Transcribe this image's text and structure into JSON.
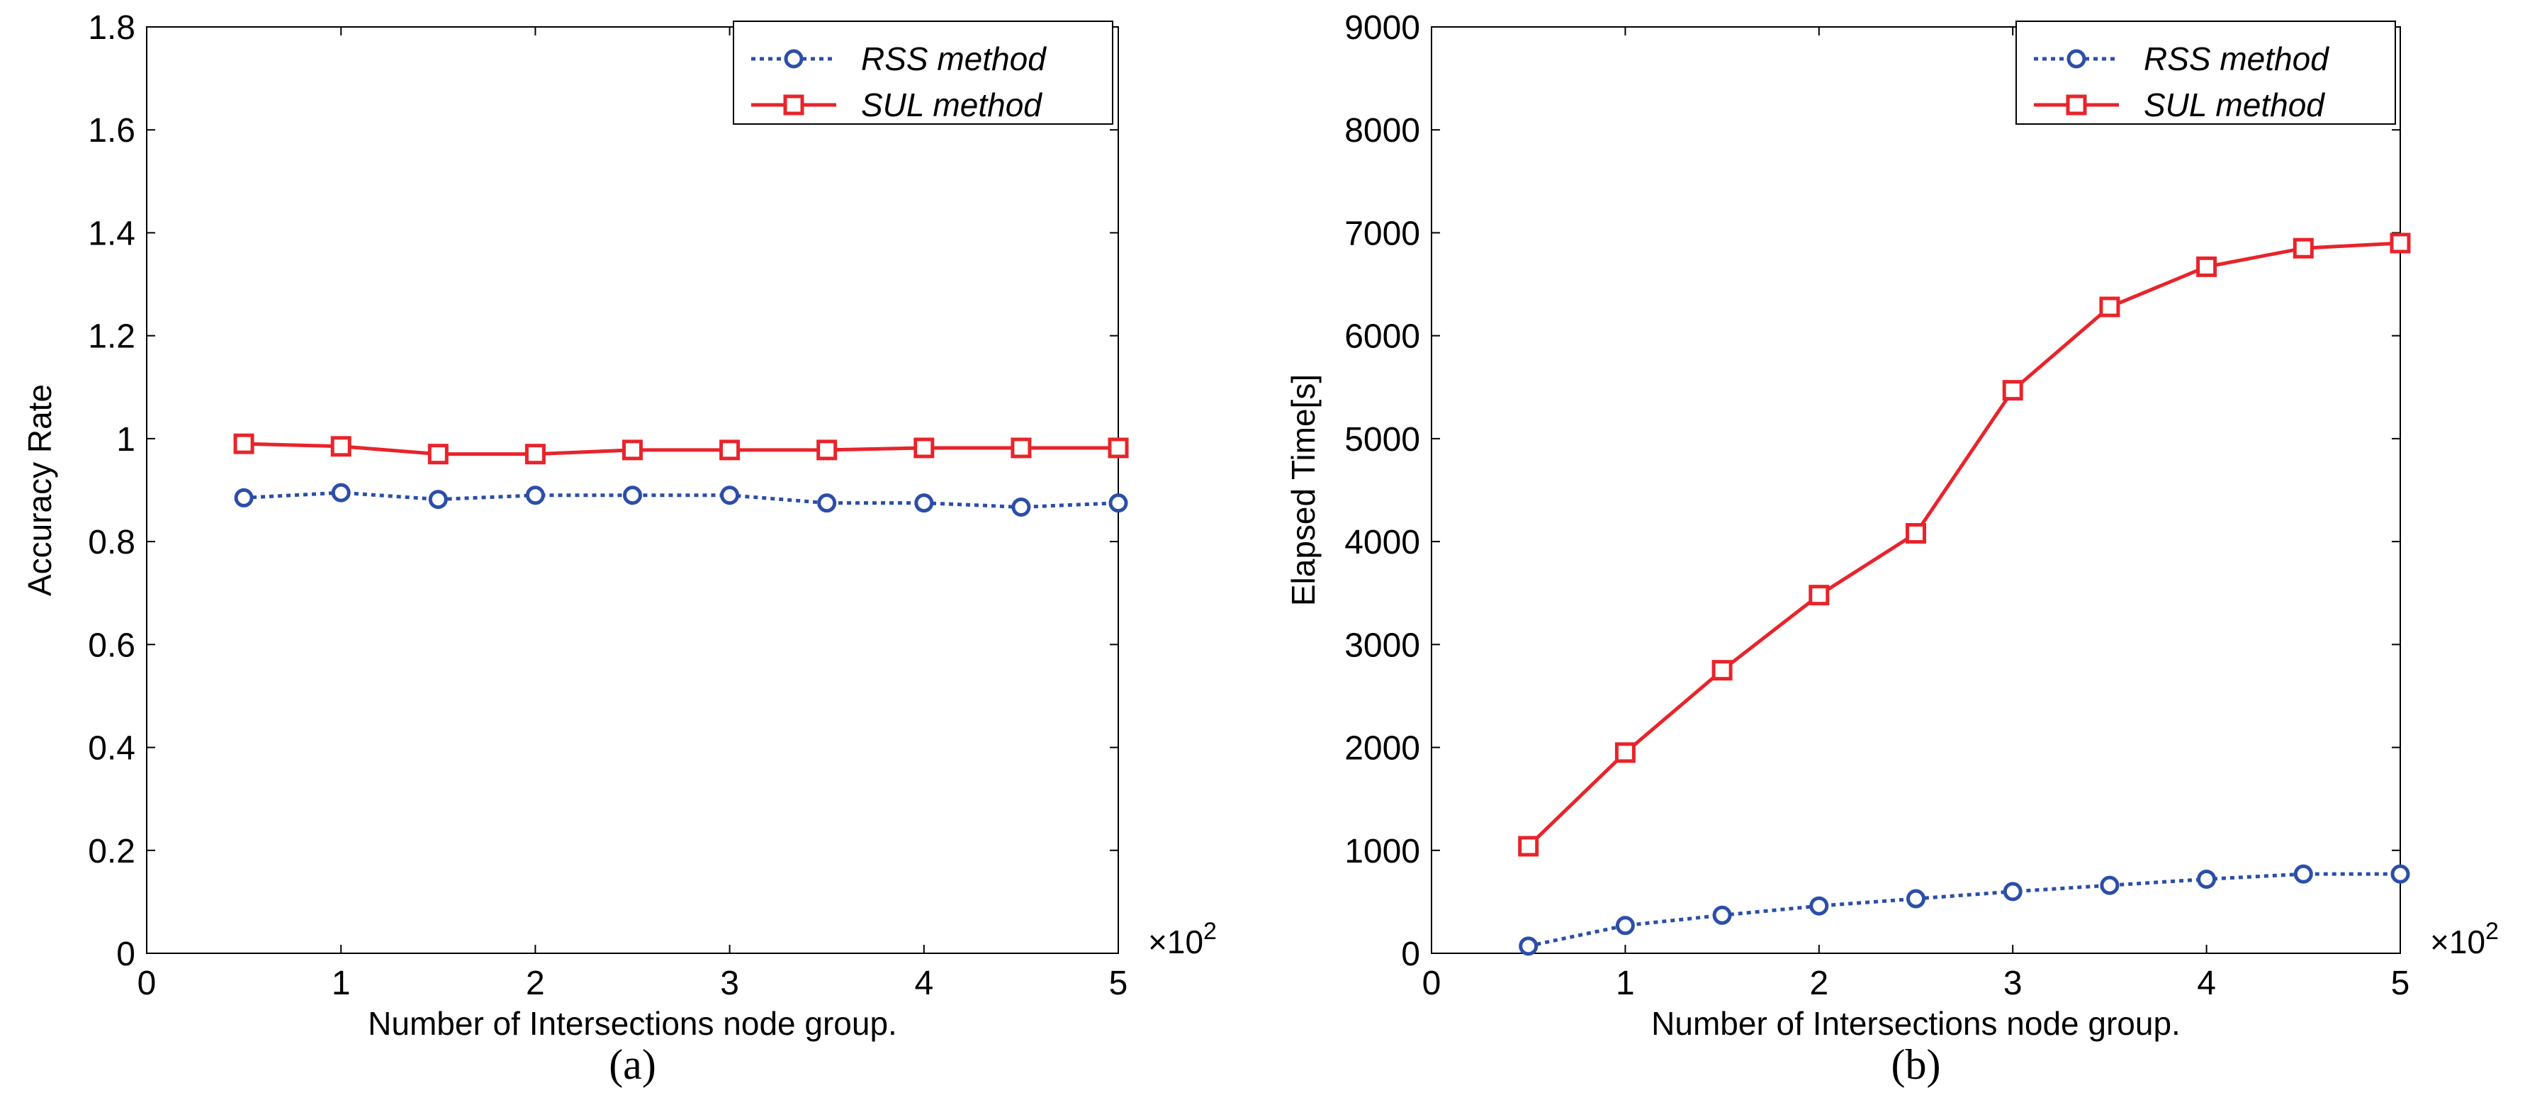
{
  "colors": {
    "rss": "#2b4ea8",
    "sul": "#e8242b",
    "axis": "#000000",
    "background": "#ffffff"
  },
  "chart_data": [
    {
      "type": "line",
      "caption": "(a)",
      "title": "",
      "xlabel": "Number of Intersections node group.",
      "ylabel": "Accuracy Rate",
      "xlim": [
        0,
        5
      ],
      "ylim": [
        0,
        1.8
      ],
      "xticks": [
        "0",
        "1",
        "2",
        "3",
        "4",
        "5"
      ],
      "yticks": [
        "0",
        "0.2",
        "0.4",
        "0.6",
        "0.8",
        "1",
        "1.2",
        "1.4",
        "1.6",
        "1.8"
      ],
      "xticks_values": [
        0,
        1,
        2,
        3,
        4,
        5
      ],
      "yticks_values": [
        0,
        0.2,
        0.4,
        0.6,
        0.8,
        1,
        1.2,
        1.4,
        1.6,
        1.8
      ],
      "x_multiplier_label": "×10",
      "x_multiplier_exponent": "2",
      "legend_position": "top-right",
      "grid": false,
      "x": [
        0.5,
        1.0,
        1.5,
        2.0,
        2.5,
        3.0,
        3.5,
        4.0,
        4.5,
        5.0
      ],
      "series": [
        {
          "name": "RSS method",
          "color_key": "rss",
          "line": "dotted",
          "marker": "circle",
          "values": [
            0.885,
            0.895,
            0.882,
            0.89,
            0.89,
            0.89,
            0.875,
            0.875,
            0.867,
            0.875
          ]
        },
        {
          "name": "SUL method",
          "color_key": "sul",
          "line": "solid",
          "marker": "square",
          "values": [
            0.99,
            0.985,
            0.97,
            0.97,
            0.978,
            0.978,
            0.978,
            0.982,
            0.982,
            0.982
          ]
        }
      ]
    },
    {
      "type": "line",
      "caption": "(b)",
      "title": "",
      "xlabel": "Number of Intersections node group.",
      "ylabel": "Elapsed Time[s]",
      "xlim": [
        0,
        5
      ],
      "ylim": [
        0,
        9000
      ],
      "xticks": [
        "0",
        "1",
        "2",
        "3",
        "4",
        "5"
      ],
      "yticks": [
        "0",
        "1000",
        "2000",
        "3000",
        "4000",
        "5000",
        "6000",
        "7000",
        "8000",
        "9000"
      ],
      "xticks_values": [
        0,
        1,
        2,
        3,
        4,
        5
      ],
      "yticks_values": [
        0,
        1000,
        2000,
        3000,
        4000,
        5000,
        6000,
        7000,
        8000,
        9000
      ],
      "x_multiplier_label": "×10",
      "x_multiplier_exponent": "2",
      "legend_position": "top-right",
      "grid": false,
      "x": [
        0.5,
        1.0,
        1.5,
        2.0,
        2.5,
        3.0,
        3.5,
        4.0,
        4.5,
        5.0
      ],
      "series": [
        {
          "name": "RSS method",
          "color_key": "rss",
          "line": "dotted",
          "marker": "circle",
          "values": [
            70,
            270,
            370,
            460,
            530,
            600,
            660,
            720,
            770,
            770
          ]
        },
        {
          "name": "SUL method",
          "color_key": "sul",
          "line": "solid",
          "marker": "square",
          "values": [
            1040,
            1950,
            2750,
            3480,
            4080,
            5470,
            6280,
            6670,
            6850,
            6900
          ]
        }
      ]
    }
  ]
}
